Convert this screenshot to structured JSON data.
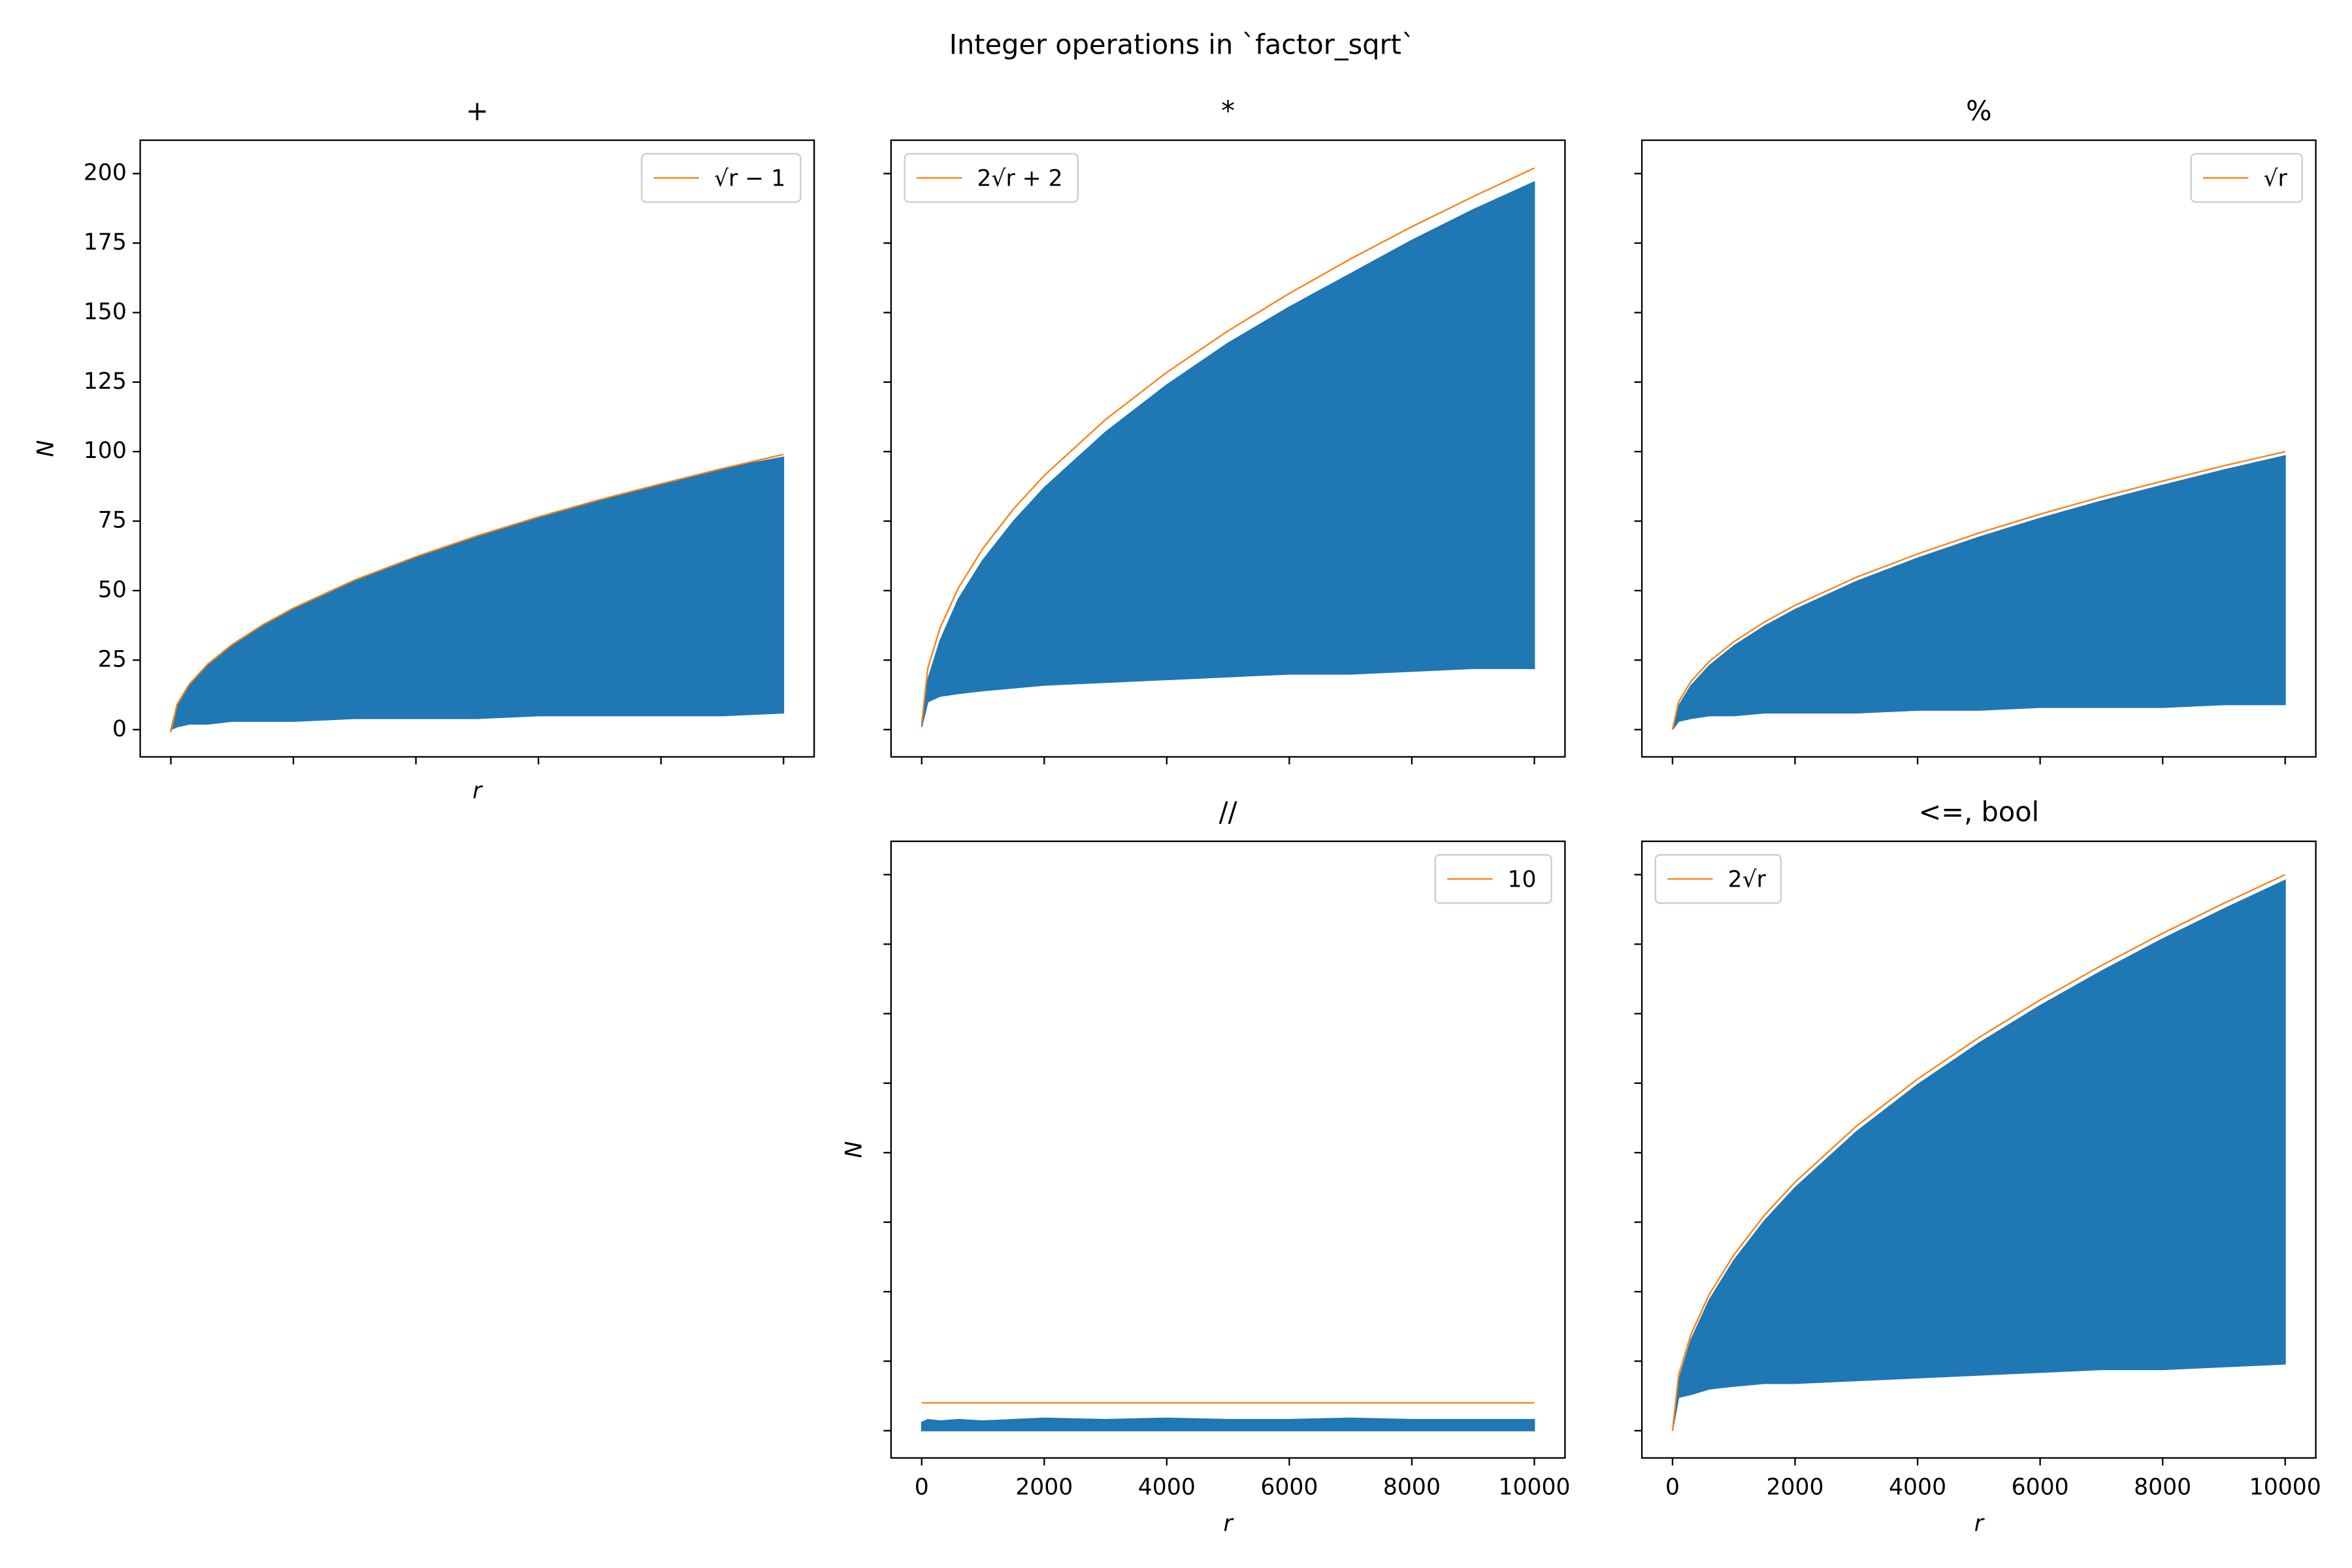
{
  "figure_title": "Integer operations in `factor_sqrt`",
  "chart_data": [
    {
      "type": "range_area",
      "title": "+",
      "xlabel": "r",
      "ylabel": "N",
      "xtick_labels": false,
      "ytick_labels": true,
      "xlim": [
        -500,
        10500
      ],
      "ylim": [
        -9.8,
        212
      ],
      "xticks": [
        0,
        2000,
        4000,
        6000,
        8000,
        10000
      ],
      "yticks": [
        0,
        25,
        50,
        75,
        100,
        125,
        150,
        175,
        200
      ],
      "color": "#1f77b4",
      "x": [
        0,
        100,
        300,
        600,
        1000,
        1500,
        2000,
        3000,
        4000,
        5000,
        6000,
        7000,
        8000,
        9000,
        10000
      ],
      "high": [
        0,
        9,
        16.3,
        23.5,
        30.6,
        37.7,
        43.7,
        53.8,
        62.2,
        69.7,
        76.5,
        82.7,
        88.4,
        93.9,
        98
      ],
      "low": [
        0,
        1,
        2,
        2,
        3,
        3,
        3,
        4,
        4,
        4,
        5,
        5,
        5,
        5,
        6
      ],
      "reference": {
        "name": "√r − 1",
        "color": "#ff7f0e",
        "values": [
          -1,
          9,
          16.3,
          23.5,
          30.6,
          37.7,
          43.7,
          53.8,
          62.2,
          69.7,
          76.5,
          82.7,
          88.4,
          93.9,
          99
        ]
      },
      "legend": "upper right"
    },
    {
      "type": "range_area",
      "title": "*",
      "xtick_labels": false,
      "ytick_labels": false,
      "xlim": [
        -500,
        10500
      ],
      "ylim": [
        -9.8,
        212
      ],
      "xticks": [
        0,
        2000,
        4000,
        6000,
        8000,
        10000
      ],
      "yticks": [
        0,
        25,
        50,
        75,
        100,
        125,
        150,
        175,
        200
      ],
      "color": "#1f77b4",
      "x": [
        0,
        100,
        300,
        600,
        1000,
        1500,
        2000,
        3000,
        4000,
        5000,
        6000,
        7000,
        8000,
        9000,
        10000
      ],
      "high": [
        1,
        18,
        32,
        47,
        61,
        75,
        87,
        107,
        124,
        139,
        152,
        164,
        176,
        187,
        197
      ],
      "low": [
        1,
        10,
        12,
        13,
        14,
        15,
        16,
        17,
        18,
        19,
        20,
        20,
        21,
        22,
        22
      ],
      "reference": {
        "name": "2√r + 2",
        "color": "#ff7f0e",
        "values": [
          2,
          22,
          36.6,
          51,
          65.2,
          79.4,
          91.4,
          111.5,
          128.5,
          143.4,
          156.9,
          169.3,
          180.9,
          191.7,
          202
        ]
      },
      "legend": "upper left"
    },
    {
      "type": "range_area",
      "title": "%",
      "xtick_labels": false,
      "ytick_labels": false,
      "xlim": [
        -500,
        10500
      ],
      "ylim": [
        -9.8,
        212
      ],
      "xticks": [
        0,
        2000,
        4000,
        6000,
        8000,
        10000
      ],
      "yticks": [
        0,
        25,
        50,
        75,
        100,
        125,
        150,
        175,
        200
      ],
      "color": "#1f77b4",
      "x": [
        0,
        100,
        300,
        600,
        1000,
        1500,
        2000,
        3000,
        4000,
        5000,
        6000,
        7000,
        8000,
        9000,
        10000
      ],
      "high": [
        0,
        8.5,
        15.8,
        23,
        30.1,
        37.2,
        43.2,
        53.3,
        61.7,
        69.2,
        76,
        82.2,
        87.9,
        93.4,
        98.5
      ],
      "low": [
        0,
        3,
        4,
        5,
        5,
        6,
        6,
        6,
        7,
        7,
        8,
        8,
        8,
        9,
        9
      ],
      "reference": {
        "name": "√r",
        "color": "#ff7f0e",
        "values": [
          0,
          10,
          17.3,
          24.5,
          31.6,
          38.7,
          44.7,
          54.8,
          63.2,
          70.7,
          77.5,
          83.7,
          89.4,
          94.9,
          100
        ]
      },
      "legend": "upper right"
    },
    {
      "type": "range_area",
      "title": "//",
      "xlabel": "r",
      "ylabel": "N",
      "xtick_labels": true,
      "ytick_labels": false,
      "xlim": [
        -500,
        10500
      ],
      "ylim": [
        -9.8,
        212
      ],
      "xticks": [
        0,
        2000,
        4000,
        6000,
        8000,
        10000
      ],
      "yticks": [
        0,
        25,
        50,
        75,
        100,
        125,
        150,
        175,
        200
      ],
      "color": "#1f77b4",
      "x": [
        0,
        100,
        300,
        600,
        1000,
        1500,
        2000,
        3000,
        4000,
        5000,
        6000,
        7000,
        8000,
        9000,
        10000
      ],
      "high": [
        3,
        4,
        3.5,
        4,
        3.5,
        4,
        4.5,
        4,
        4.5,
        4,
        4,
        4.5,
        4,
        4,
        4
      ],
      "low": [
        0,
        0,
        0,
        0,
        0,
        0,
        0,
        0,
        0,
        0,
        0,
        0,
        0,
        0,
        0
      ],
      "reference": {
        "name": "10",
        "color": "#ff7f0e",
        "values": [
          10,
          10,
          10,
          10,
          10,
          10,
          10,
          10,
          10,
          10,
          10,
          10,
          10,
          10,
          10
        ]
      },
      "legend": "upper right"
    },
    {
      "type": "range_area",
      "title": "<=, bool",
      "xlabel": "r",
      "xtick_labels": true,
      "ytick_labels": false,
      "xlim": [
        -500,
        10500
      ],
      "ylim": [
        -9.8,
        212
      ],
      "xticks": [
        0,
        2000,
        4000,
        6000,
        8000,
        10000
      ],
      "yticks": [
        0,
        25,
        50,
        75,
        100,
        125,
        150,
        175,
        200
      ],
      "color": "#1f77b4",
      "x": [
        0,
        100,
        300,
        600,
        1000,
        1500,
        2000,
        3000,
        4000,
        5000,
        6000,
        7000,
        8000,
        9000,
        10000
      ],
      "high": [
        0,
        18,
        32.6,
        47,
        61.2,
        75.5,
        87.4,
        107.5,
        124.5,
        139.4,
        152.9,
        165.3,
        176.9,
        187.7,
        198
      ],
      "low": [
        0,
        12,
        13,
        15,
        16,
        17,
        17,
        18,
        19,
        20,
        21,
        22,
        22,
        23,
        24
      ],
      "reference": {
        "name": "2√r",
        "color": "#ff7f0e",
        "values": [
          0,
          20,
          34.6,
          49,
          63.2,
          77.5,
          89.4,
          109.5,
          126.5,
          141.4,
          154.9,
          167.3,
          178.9,
          189.7,
          200
        ]
      },
      "legend": "upper left"
    }
  ]
}
